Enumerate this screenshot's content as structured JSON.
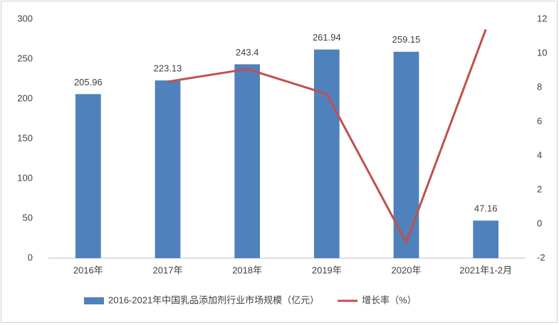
{
  "chart_data": {
    "type": "bar",
    "categories": [
      "2016年",
      "2017年",
      "2018年",
      "2019年",
      "2020年",
      "2021年1-2月"
    ],
    "series": [
      {
        "name": "2016-2021年中国乳品添加剂行业市场规模（亿元）",
        "type": "bar",
        "color": "#4f81bd",
        "values": [
          205.96,
          223.13,
          243.4,
          261.94,
          259.15,
          47.16
        ]
      },
      {
        "name": "增长率（%）",
        "type": "line",
        "axis": "y2",
        "color": "#c0504d",
        "values": [
          null,
          8.34,
          9.08,
          7.62,
          -1.07,
          11.4
        ]
      }
    ],
    "ylim": [
      0,
      300
    ],
    "yticks": [
      0,
      50,
      100,
      150,
      200,
      250,
      300
    ],
    "y2lim": [
      -2,
      12
    ],
    "y2ticks": [
      -2,
      0,
      2,
      4,
      6,
      8,
      10,
      12
    ],
    "grid": false,
    "legend": "bottom"
  }
}
